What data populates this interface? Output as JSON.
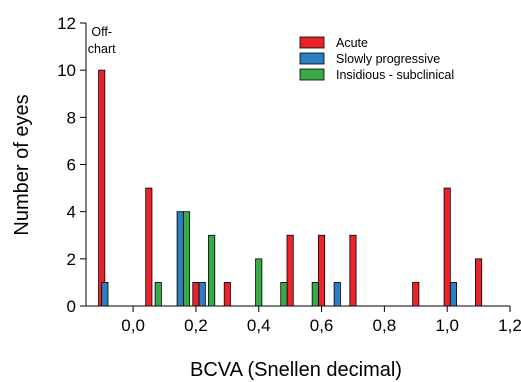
{
  "chart_data": {
    "type": "bar",
    "title": "",
    "xlabel": "BCVA (Snellen decimal)",
    "ylabel": "Number of eyes",
    "xlim": [
      -0.15,
      1.2
    ],
    "ylim": [
      0,
      12
    ],
    "x_ticks": [
      "0,0",
      "0,2",
      "0,4",
      "0,6",
      "0,8",
      "1,0",
      "1,2"
    ],
    "x_tick_values": [
      0.0,
      0.2,
      0.4,
      0.6,
      0.8,
      1.0,
      1.2
    ],
    "y_ticks": [
      "0",
      "2",
      "4",
      "6",
      "8",
      "10",
      "12"
    ],
    "y_tick_values": [
      0,
      2,
      4,
      6,
      8,
      10,
      12
    ],
    "annotation": "Off-\nchart",
    "grid": false,
    "legend_position": "top-right",
    "bar_width": 0.02,
    "series": [
      {
        "name": "Acute",
        "color": "#e8232a",
        "points": [
          [
            -0.1,
            10
          ],
          [
            0.05,
            5
          ],
          [
            0.2,
            1
          ],
          [
            0.3,
            1
          ],
          [
            0.5,
            3
          ],
          [
            0.6,
            3
          ],
          [
            0.7,
            3
          ],
          [
            0.9,
            1
          ],
          [
            1.0,
            5
          ],
          [
            1.1,
            2
          ]
        ]
      },
      {
        "name": "Slowly progressive",
        "color": "#2e7ec3",
        "points": [
          [
            -0.09,
            1
          ],
          [
            0.15,
            4
          ],
          [
            0.22,
            1
          ],
          [
            0.65,
            1
          ],
          [
            1.02,
            1
          ]
        ]
      },
      {
        "name": "Insidious - subclinical",
        "color": "#3aaa48",
        "points": [
          [
            0.08,
            1
          ],
          [
            0.17,
            4
          ],
          [
            0.25,
            3
          ],
          [
            0.4,
            2
          ],
          [
            0.48,
            1
          ],
          [
            0.58,
            1
          ]
        ]
      }
    ]
  }
}
